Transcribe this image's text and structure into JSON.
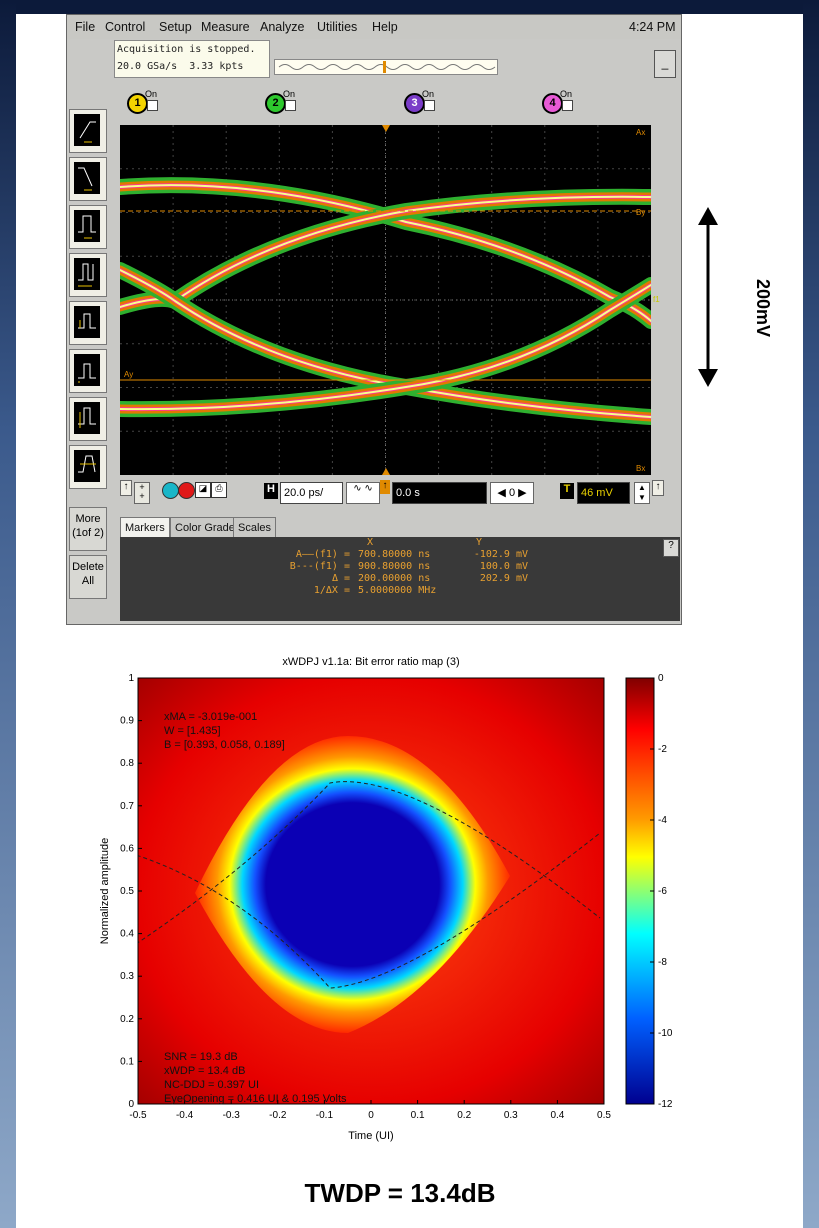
{
  "menu": {
    "items": [
      "File",
      "Control",
      "Setup",
      "Measure",
      "Analyze",
      "Utilities",
      "Help"
    ],
    "time": "4:24 PM"
  },
  "acquisition": {
    "status": "Acquisition is stopped.",
    "rate": "20.0 GSa/s  3.33 kpts",
    "min_label": "_"
  },
  "channels": [
    {
      "num": "1",
      "label": "On",
      "color": "#f4d400"
    },
    {
      "num": "2",
      "label": "On",
      "color": "#2ec82e"
    },
    {
      "num": "3",
      "label": "On",
      "color": "#7a3cc8"
    },
    {
      "num": "4",
      "label": "On",
      "color": "#e85ad6"
    }
  ],
  "sidebar": {
    "more": "More\n(1of 2)",
    "delete": "Delete\nAll"
  },
  "graticule": {
    "marker_labels": {
      "ax": "Ax",
      "by": "By",
      "ay": "Ay",
      "bx": "Bx",
      "f1": "f1"
    }
  },
  "timebase": {
    "h_label": "H",
    "scale": "20.0 ps/",
    "position": "0.0 s",
    "zero": "0",
    "t_label": "T",
    "trigger": "46 mV"
  },
  "tabs": [
    "Markers",
    "Color Grade",
    "Scales"
  ],
  "markers_table": {
    "col_x": "X",
    "col_y": "Y",
    "rows": [
      {
        "label": "A——(f1) =",
        "x": "700.80000 ns",
        "y": "-102.9 mV"
      },
      {
        "label": "B---(f1) =",
        "x": "900.80000 ns",
        "y": "100.0 mV"
      },
      {
        "label": "Δ =",
        "x": "200.00000 ns",
        "y": "202.9 mV"
      },
      {
        "label": "1/ΔX =",
        "x": "5.0000000 MHz",
        "y": ""
      }
    ],
    "help": "?"
  },
  "annotation": {
    "vertical": "200mV"
  },
  "ber_map": {
    "title": "xWDPJ v1.1a: Bit error ratio map (3)",
    "xlabel": "Time (UI)",
    "ylabel": "Normalized amplitude",
    "x_ticks": [
      "-0.5",
      "-0.4",
      "-0.3",
      "-0.2",
      "-0.1",
      "0",
      "0.1",
      "0.2",
      "0.3",
      "0.4",
      "0.5"
    ],
    "y_ticks": [
      "0",
      "0.1",
      "0.2",
      "0.3",
      "0.4",
      "0.5",
      "0.6",
      "0.7",
      "0.8",
      "0.9",
      "1"
    ],
    "colorbar_ticks": [
      "0",
      "-2",
      "-4",
      "-6",
      "-8",
      "-10",
      "-12"
    ],
    "stats_top": [
      "xMA = -3.019e-001",
      "W = [1.435]",
      "B = [0.393, 0.058, 0.189]"
    ],
    "stats_bottom": [
      "SNR = 19.3 dB",
      "xWDP = 13.4 dB",
      "NC-DDJ = 0.397 UI",
      "EyeOpening = 0.416 UI & 0.195 Volts"
    ]
  },
  "caption": "TWDP = 13.4dB"
}
